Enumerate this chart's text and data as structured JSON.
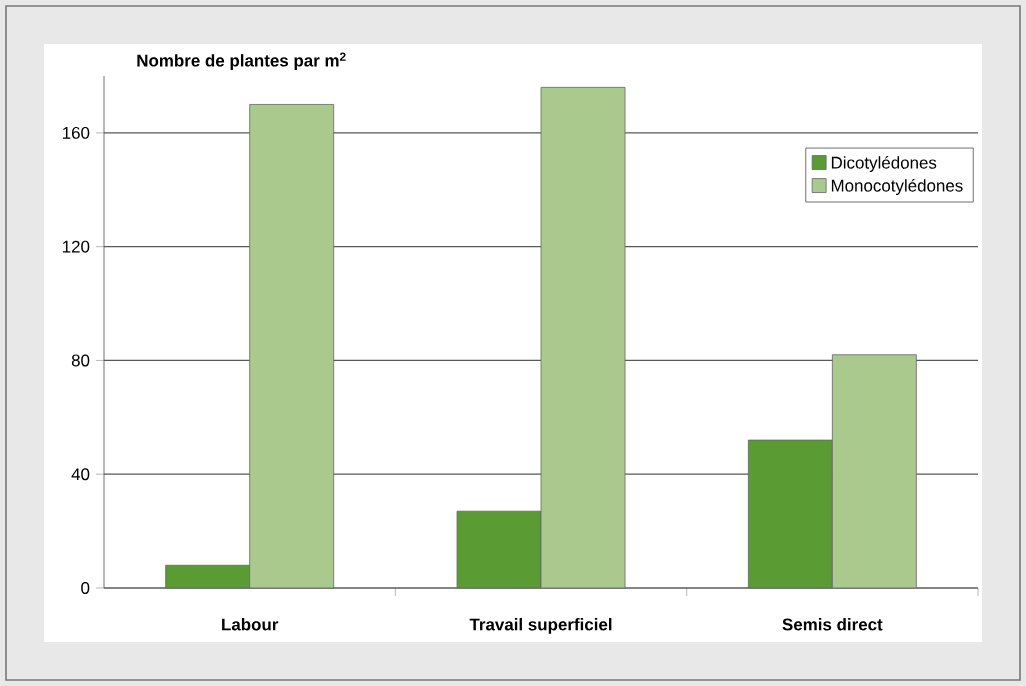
{
  "chart_data": {
    "type": "bar",
    "ylabel": "Nombre de plantes par m$^{2}$",
    "categories": [
      "Labour",
      "Travail superficiel",
      "Semis direct"
    ],
    "series": [
      {
        "name": "Dicotylédones",
        "color": "#5b9b33",
        "values": [
          8,
          27,
          52
        ]
      },
      {
        "name": "Monocotylédones",
        "color": "#a9c98d",
        "values": [
          170,
          176,
          82
        ]
      }
    ],
    "ylim": [
      0,
      180
    ],
    "yticks": [
      0,
      40,
      80,
      120,
      160
    ],
    "grid": "y",
    "legend": "top right"
  }
}
